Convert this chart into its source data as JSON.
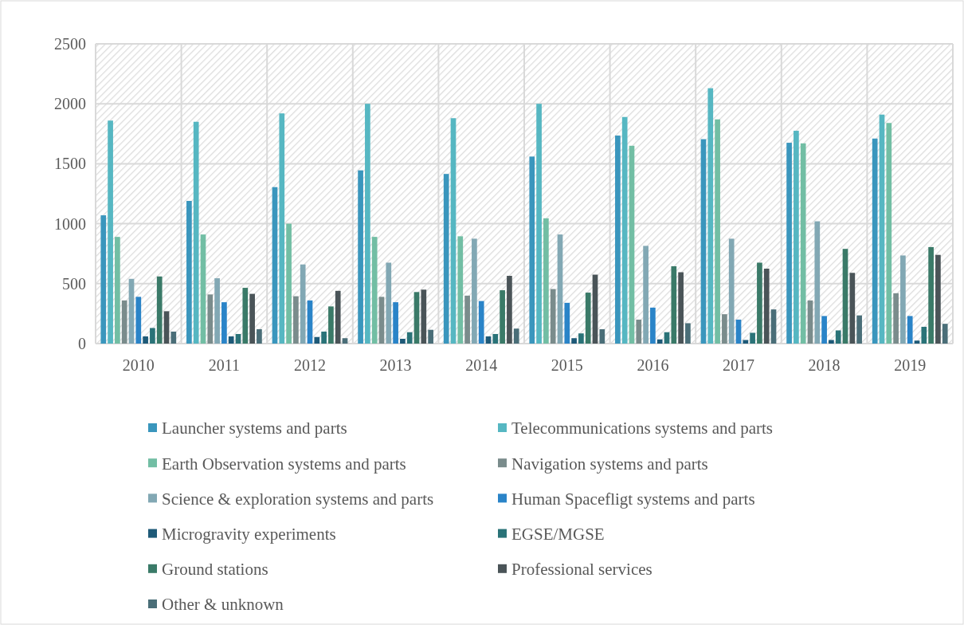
{
  "chart_data": {
    "type": "bar",
    "categories": [
      "2010",
      "2011",
      "2012",
      "2013",
      "2014",
      "2015",
      "2016",
      "2017",
      "2018",
      "2019"
    ],
    "series": [
      {
        "name": "Launcher systems and parts",
        "color": "#3a96bd",
        "values": [
          1070,
          1190,
          1305,
          1445,
          1415,
          1560,
          1735,
          1705,
          1675,
          1710
        ]
      },
      {
        "name": "Telecommunications systems and parts",
        "color": "#56b7c2",
        "values": [
          1860,
          1850,
          1920,
          2000,
          1880,
          2000,
          1890,
          2130,
          1775,
          1910
        ]
      },
      {
        "name": "Earth Observation systems and parts",
        "color": "#72bea4",
        "values": [
          890,
          910,
          1000,
          890,
          895,
          1045,
          1650,
          1870,
          1670,
          1840
        ]
      },
      {
        "name": "Navigation systems and parts",
        "color": "#7a8c8c",
        "values": [
          360,
          410,
          395,
          390,
          400,
          455,
          200,
          245,
          360,
          420
        ]
      },
      {
        "name": "Science & exploration systems and parts",
        "color": "#82a8b4",
        "values": [
          540,
          545,
          660,
          675,
          875,
          910,
          815,
          875,
          1020,
          735
        ]
      },
      {
        "name": "Human Spacefligt systems and parts",
        "color": "#2a84c8",
        "values": [
          390,
          345,
          360,
          345,
          355,
          340,
          300,
          200,
          230,
          230
        ]
      },
      {
        "name": "Microgravity experiments",
        "color": "#1e5a78",
        "values": [
          60,
          60,
          55,
          40,
          60,
          45,
          35,
          30,
          30,
          25
        ]
      },
      {
        "name": "EGSE/MGSE",
        "color": "#2a7378",
        "values": [
          130,
          80,
          100,
          95,
          80,
          85,
          95,
          90,
          110,
          140
        ]
      },
      {
        "name": "Ground stations",
        "color": "#3a7a68",
        "values": [
          560,
          465,
          310,
          430,
          445,
          425,
          645,
          675,
          790,
          805
        ]
      },
      {
        "name": "Professional services",
        "color": "#4a5458",
        "values": [
          270,
          415,
          440,
          450,
          565,
          575,
          595,
          625,
          590,
          740
        ]
      },
      {
        "name": "Other & unknown",
        "color": "#4a6e78",
        "values": [
          100,
          120,
          45,
          115,
          125,
          120,
          170,
          285,
          235,
          165
        ]
      }
    ],
    "ylim": [
      0,
      2500
    ],
    "yticks": [
      0,
      500,
      1000,
      1500,
      2000,
      2500
    ],
    "grid": true,
    "legend": "bottom"
  }
}
